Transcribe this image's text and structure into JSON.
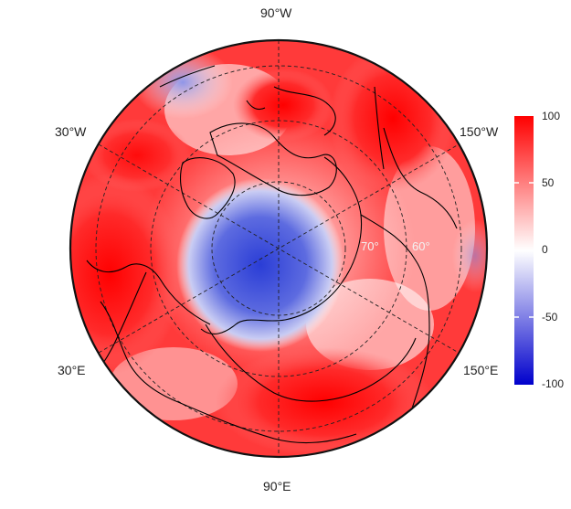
{
  "map": {
    "projection": "polar-stereographic-north",
    "longitude_labels": {
      "top": "90°W",
      "upper_left": "30°W",
      "upper_right": "150°W",
      "lower_left": "30°E",
      "lower_right": "150°E",
      "bottom": "90°E"
    },
    "latitude_labels": [
      "70°",
      "60°"
    ],
    "field_description_colors": {
      "positive": "#ff0000",
      "neutral": "#ffffff",
      "negative": "#0000cc"
    }
  },
  "colorbar": {
    "ticks": [
      "100",
      "50",
      "0",
      "-50",
      "-100"
    ],
    "range": [
      -100,
      100
    ],
    "colors": {
      "top": "#ff0000",
      "middle": "#ffffff",
      "bottom": "#0000cc"
    }
  }
}
